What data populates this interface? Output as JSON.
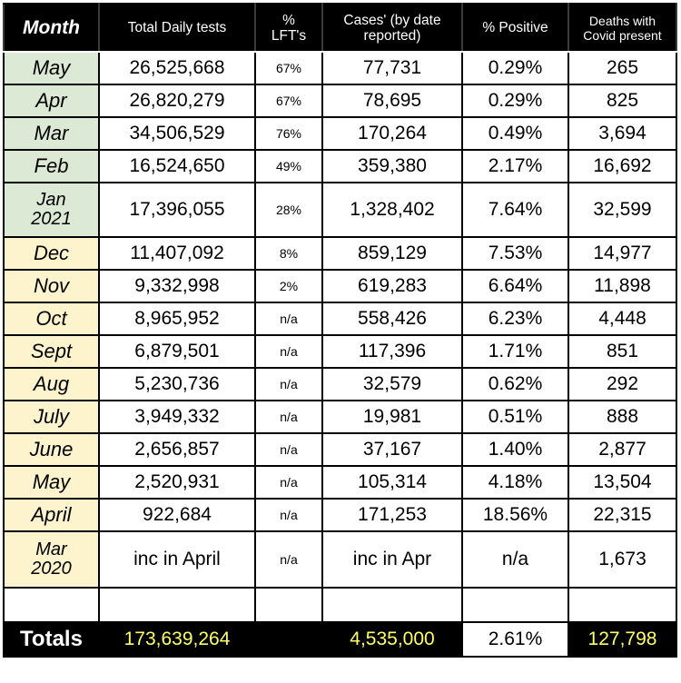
{
  "headers": {
    "month": "Month",
    "tests": "Total Daily tests",
    "lft_line1": "%",
    "lft_line2": "LFT's",
    "cases_line1": "Cases' (by date",
    "cases_line2": "reported)",
    "positive": "% Positive",
    "deaths_line1": "Deaths with",
    "deaths_line2": "Covid present"
  },
  "colors": {
    "green_month": "#dce9d5",
    "yellow_month": "#fdf3cd",
    "totals_text": "#ffff66"
  },
  "rows": [
    {
      "month1": "May",
      "month2": "",
      "tests": "26,525,668",
      "lft": "67%",
      "cases": "77,731",
      "positive": "0.29%",
      "deaths": "265"
    },
    {
      "month1": "Apr",
      "month2": "",
      "tests": "26,820,279",
      "lft": "67%",
      "cases": "78,695",
      "positive": "0.29%",
      "deaths": "825"
    },
    {
      "month1": "Mar",
      "month2": "",
      "tests": "34,506,529",
      "lft": "76%",
      "cases": "170,264",
      "positive": "0.49%",
      "deaths": "3,694"
    },
    {
      "month1": "Feb",
      "month2": "",
      "tests": "16,524,650",
      "lft": "49%",
      "cases": "359,380",
      "positive": "2.17%",
      "deaths": "16,692"
    },
    {
      "month1": "Jan",
      "month2": "2021",
      "tests": "17,396,055",
      "lft": "28%",
      "cases": "1,328,402",
      "positive": "7.64%",
      "deaths": "32,599"
    },
    {
      "month1": "Dec",
      "month2": "",
      "tests": "11,407,092",
      "lft": "8%",
      "cases": "859,129",
      "positive": "7.53%",
      "deaths": "14,977"
    },
    {
      "month1": "Nov",
      "month2": "",
      "tests": "9,332,998",
      "lft": "2%",
      "cases": "619,283",
      "positive": "6.64%",
      "deaths": "11,898"
    },
    {
      "month1": "Oct",
      "month2": "",
      "tests": "8,965,952",
      "lft": "n/a",
      "cases": "558,426",
      "positive": "6.23%",
      "deaths": "4,448"
    },
    {
      "month1": "Sept",
      "month2": "",
      "tests": "6,879,501",
      "lft": "n/a",
      "cases": "117,396",
      "positive": "1.71%",
      "deaths": "851"
    },
    {
      "month1": "Aug",
      "month2": "",
      "tests": "5,230,736",
      "lft": "n/a",
      "cases": "32,579",
      "positive": "0.62%",
      "deaths": "292"
    },
    {
      "month1": "July",
      "month2": "",
      "tests": "3,949,332",
      "lft": "n/a",
      "cases": "19,981",
      "positive": "0.51%",
      "deaths": "888"
    },
    {
      "month1": "June",
      "month2": "",
      "tests": "2,656,857",
      "lft": "n/a",
      "cases": "37,167",
      "positive": "1.40%",
      "deaths": "2,877"
    },
    {
      "month1": "May",
      "month2": "",
      "tests": "2,520,931",
      "lft": "n/a",
      "cases": "105,314",
      "positive": "4.18%",
      "deaths": "13,504"
    },
    {
      "month1": "April",
      "month2": "",
      "tests": "922,684",
      "lft": "n/a",
      "cases": "171,253",
      "positive": "18.56%",
      "deaths": "22,315"
    },
    {
      "month1": "Mar",
      "month2": "2020",
      "tests": "inc in April",
      "lft": "n/a",
      "cases": "inc in Apr",
      "positive": "n/a",
      "deaths": "1,673"
    }
  ],
  "totals": {
    "label": "Totals",
    "tests": "173,639,264",
    "lft": "",
    "cases": "4,535,000",
    "positive": "2.61%",
    "deaths": "127,798"
  }
}
